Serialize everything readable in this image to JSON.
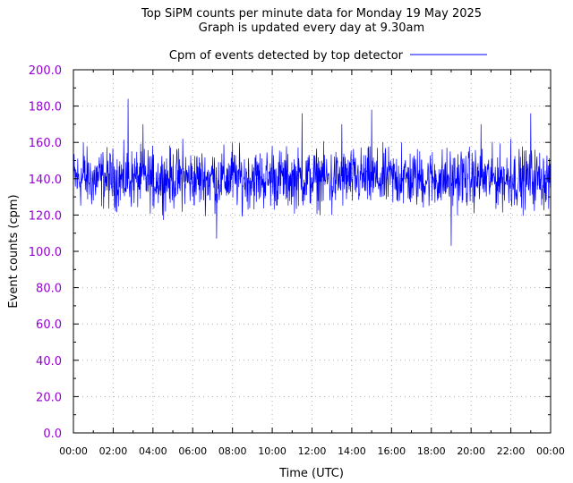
{
  "chart_data": {
    "type": "line",
    "title": "Top SiPM counts per minute data for Monday 19 May 2025",
    "subtitle": "Graph is updated every day at 9.30am",
    "xlabel": "Time (UTC)",
    "ylabel": "Event counts (cpm)",
    "x_unit": "hours (UTC)",
    "xlim": [
      0,
      24
    ],
    "ylim": [
      0,
      200
    ],
    "y_ticks": [
      0,
      20,
      40,
      60,
      80,
      100,
      120,
      140,
      160,
      180,
      200
    ],
    "y_tick_labels": [
      "0.0",
      "20.0",
      "40.0",
      "60.0",
      "80.0",
      "100.0",
      "120.0",
      "140.0",
      "160.0",
      "180.0",
      "200.0"
    ],
    "x_ticks": [
      0,
      2,
      4,
      6,
      8,
      10,
      12,
      14,
      16,
      18,
      20,
      22,
      24
    ],
    "x_tick_labels": [
      "00:00",
      "02:00",
      "04:00",
      "06:00",
      "08:00",
      "10:00",
      "12:00",
      "14:00",
      "16:00",
      "18:00",
      "20:00",
      "22:00",
      "00:00"
    ],
    "grid": true,
    "legend_position": "top-center",
    "colors": {
      "series": "#0000ff",
      "axis_text": "#9400d3",
      "grid": "#b0b0b0"
    },
    "series": [
      {
        "name": "Cpm of events detected by top detector",
        "x": [
          0.0,
          0.5,
          1.0,
          1.5,
          2.0,
          2.5,
          2.75,
          3.0,
          3.5,
          4.0,
          4.5,
          5.0,
          5.5,
          6.0,
          6.5,
          7.0,
          7.2,
          7.5,
          8.0,
          8.5,
          9.0,
          9.5,
          10.0,
          10.5,
          11.0,
          11.5,
          12.0,
          12.5,
          13.0,
          13.5,
          14.0,
          14.5,
          15.0,
          15.5,
          16.0,
          16.5,
          17.0,
          17.5,
          18.0,
          18.5,
          19.0,
          19.5,
          20.0,
          20.5,
          21.0,
          21.5,
          22.0,
          22.5,
          23.0,
          23.5,
          24.0
        ],
        "y": [
          138,
          160,
          128,
          150,
          145,
          132,
          184,
          140,
          170,
          125,
          148,
          138,
          162,
          130,
          145,
          152,
          107,
          140,
          160,
          122,
          148,
          135,
          158,
          142,
          130,
          176,
          140,
          150,
          120,
          170,
          138,
          148,
          178,
          130,
          145,
          160,
          135,
          150,
          142,
          128,
          103,
          155,
          140,
          170,
          138,
          145,
          162,
          130,
          176,
          140,
          150
        ]
      }
    ]
  }
}
